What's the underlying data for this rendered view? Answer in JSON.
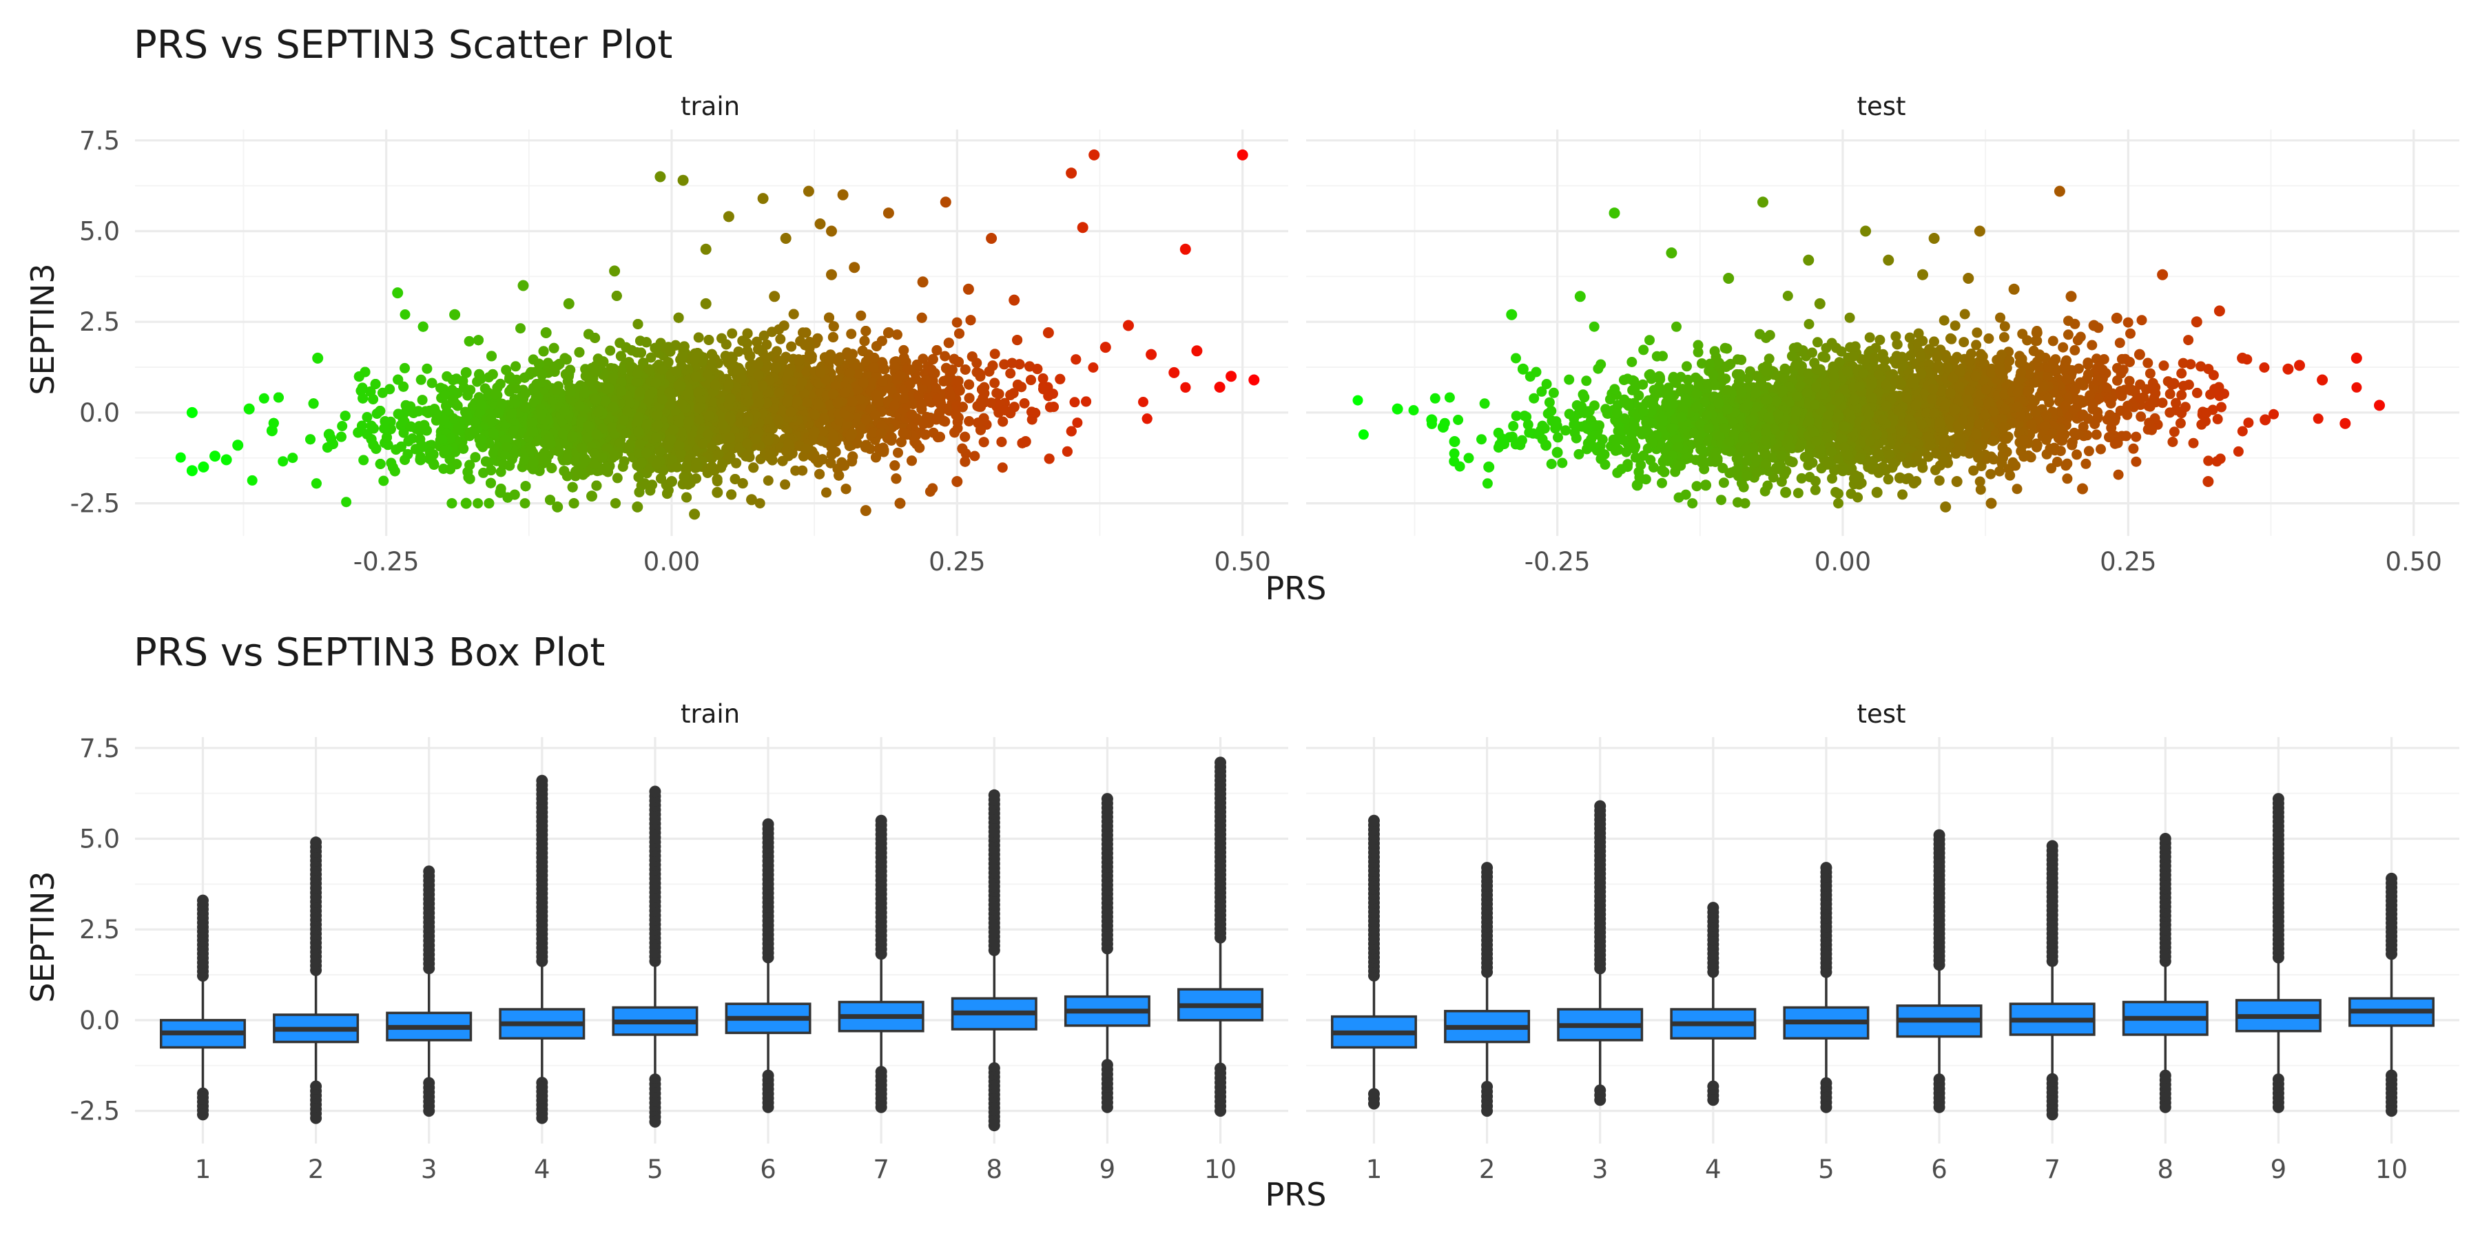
{
  "chart_data": [
    {
      "type": "scatter",
      "title": "PRS vs SEPTIN3 Scatter Plot",
      "xlabel": "PRS",
      "ylabel": "SEPTIN3",
      "facets": [
        "train",
        "test"
      ],
      "xlim": [
        -0.47,
        0.54
      ],
      "ylim": [
        -3.4,
        7.8
      ],
      "x_ticks": [
        -0.25,
        0.0,
        0.25,
        0.5
      ],
      "x_tick_labels": [
        "-0.25",
        "0.00",
        "0.25",
        "0.50"
      ],
      "y_ticks": [
        -2.5,
        0.0,
        2.5,
        5.0,
        7.5
      ],
      "y_tick_labels": [
        "-2.5",
        "0.0",
        "2.5",
        "5.0",
        "7.5"
      ],
      "grid": true,
      "color_gradient": [
        "#00ff00",
        "#ff0000"
      ],
      "series": [
        {
          "name": "train",
          "x": [
            -0.42,
            -0.41,
            -0.42,
            -0.4,
            -0.39,
            -0.38,
            -0.37,
            -0.35,
            -0.31,
            -0.3,
            -0.24,
            -0.22,
            -0.19,
            -0.18,
            -0.15,
            -0.13,
            -0.1,
            -0.09,
            -0.07,
            -0.05,
            -0.03,
            -0.01,
            0.0,
            0.01,
            0.02,
            0.03,
            0.04,
            0.05,
            0.07,
            0.08,
            0.1,
            0.12,
            0.13,
            0.14,
            0.15,
            0.16,
            0.17,
            0.19,
            0.2,
            0.22,
            0.24,
            0.25,
            0.26,
            0.28,
            0.3,
            0.31,
            0.33,
            0.35,
            0.36,
            0.37,
            0.38,
            0.4,
            0.42,
            0.44,
            0.45,
            0.46,
            0.48,
            0.49,
            0.5,
            0.51,
            -0.18,
            -0.11,
            0.19,
            0.09,
            -0.06,
            0.03,
            0.14
          ],
          "y": [
            0.0,
            -1.5,
            -1.6,
            -1.2,
            -1.3,
            -0.9,
            0.1,
            -0.5,
            1.5,
            -0.6,
            3.3,
            -1.3,
            2.7,
            -2.5,
            -2.2,
            3.5,
            -2.6,
            3.0,
            -2.3,
            3.9,
            -2.6,
            6.5,
            -1.9,
            6.4,
            -2.8,
            4.5,
            -2.2,
            5.4,
            -2.4,
            5.9,
            4.8,
            6.1,
            5.2,
            5.0,
            6.0,
            4.0,
            -2.7,
            5.5,
            -2.5,
            3.6,
            5.8,
            -1.9,
            3.4,
            4.8,
            3.1,
            -0.8,
            2.2,
            6.6,
            5.1,
            7.1,
            1.8,
            2.4,
            1.6,
            1.1,
            4.5,
            1.7,
            0.7,
            1.0,
            7.1,
            0.9,
            1.1,
            2.2,
            2.2,
            3.2,
            1.4,
            3.0,
            3.8
          ]
        },
        {
          "name": "test",
          "x": [
            -0.39,
            -0.36,
            -0.35,
            -0.34,
            -0.31,
            -0.29,
            -0.28,
            -0.25,
            -0.23,
            -0.2,
            -0.18,
            -0.15,
            -0.12,
            -0.1,
            -0.07,
            -0.05,
            -0.03,
            -0.02,
            0.0,
            0.02,
            0.04,
            0.05,
            0.07,
            0.08,
            0.09,
            0.11,
            0.12,
            0.13,
            0.15,
            0.17,
            0.19,
            0.2,
            0.21,
            0.22,
            0.24,
            0.26,
            0.28,
            0.29,
            0.31,
            0.32,
            0.33,
            0.35,
            0.37,
            0.39,
            0.4,
            0.42,
            0.44,
            0.45,
            0.47,
            -0.26,
            0.03,
            0.1
          ],
          "y": [
            0.1,
            -0.2,
            -0.4,
            -0.8,
            -1.5,
            2.7,
            1.2,
            -1.1,
            3.2,
            5.5,
            -2.0,
            4.4,
            -2.0,
            3.7,
            5.8,
            -2.2,
            4.2,
            3.0,
            -1.6,
            5.0,
            4.2,
            -1.8,
            3.8,
            4.8,
            -2.6,
            3.7,
            5.0,
            -2.5,
            3.4,
            2.2,
            6.1,
            3.2,
            -2.1,
            2.4,
            2.6,
            1.6,
            3.8,
            0.8,
            2.5,
            -1.9,
            2.8,
            1.5,
            -0.2,
            1.2,
            1.3,
            0.9,
            -0.3,
            1.5,
            0.2,
            -0.9,
            -2.2,
            -1.9
          ]
        }
      ]
    },
    {
      "type": "box",
      "title": "PRS vs SEPTIN3 Box Plot",
      "xlabel": "PRS",
      "ylabel": "SEPTIN3",
      "facets": [
        "train",
        "test"
      ],
      "categories": [
        "1",
        "2",
        "3",
        "4",
        "5",
        "6",
        "7",
        "8",
        "9",
        "10"
      ],
      "ylim": [
        -3.4,
        7.8
      ],
      "y_ticks": [
        -2.5,
        0.0,
        2.5,
        5.0,
        7.5
      ],
      "y_tick_labels": [
        "-2.5",
        "0.0",
        "2.5",
        "5.0",
        "7.5"
      ],
      "box_color": "#1e90ff",
      "series": [
        {
          "name": "train",
          "q1": [
            -0.75,
            -0.6,
            -0.55,
            -0.5,
            -0.4,
            -0.35,
            -0.3,
            -0.25,
            -0.15,
            0.0
          ],
          "median": [
            -0.35,
            -0.25,
            -0.2,
            -0.1,
            -0.05,
            0.05,
            0.1,
            0.2,
            0.25,
            0.4
          ],
          "q3": [
            0.0,
            0.15,
            0.2,
            0.3,
            0.35,
            0.45,
            0.5,
            0.6,
            0.65,
            0.85
          ],
          "whisker_low": [
            -1.9,
            -1.7,
            -1.6,
            -1.6,
            -1.5,
            -1.4,
            -1.3,
            -1.2,
            -1.1,
            -1.2
          ],
          "whisker_high": [
            1.1,
            1.25,
            1.3,
            1.5,
            1.5,
            1.6,
            1.7,
            1.8,
            1.85,
            2.15
          ],
          "outlier_max": [
            3.3,
            4.9,
            4.1,
            6.6,
            6.3,
            5.4,
            5.5,
            6.2,
            6.1,
            7.1
          ],
          "outlier_min": [
            -2.6,
            -2.7,
            -2.5,
            -2.7,
            -2.8,
            -2.4,
            -2.4,
            -2.9,
            -2.4,
            -2.5
          ]
        },
        {
          "name": "test",
          "q1": [
            -0.75,
            -0.6,
            -0.55,
            -0.5,
            -0.5,
            -0.45,
            -0.4,
            -0.4,
            -0.3,
            -0.15
          ],
          "median": [
            -0.35,
            -0.2,
            -0.15,
            -0.1,
            -0.05,
            0.0,
            0.0,
            0.05,
            0.1,
            0.25
          ],
          "q3": [
            0.1,
            0.25,
            0.3,
            0.3,
            0.35,
            0.4,
            0.45,
            0.5,
            0.55,
            0.6
          ],
          "whisker_low": [
            -1.9,
            -1.7,
            -1.8,
            -1.7,
            -1.6,
            -1.5,
            -1.5,
            -1.4,
            -1.5,
            -1.4
          ],
          "whisker_high": [
            1.1,
            1.2,
            1.3,
            1.2,
            1.2,
            1.4,
            1.5,
            1.5,
            1.6,
            1.7
          ],
          "outlier_max": [
            5.5,
            4.2,
            5.9,
            3.1,
            4.2,
            5.1,
            4.8,
            5.0,
            6.1,
            3.9
          ],
          "outlier_min": [
            -2.3,
            -2.5,
            -2.2,
            -2.2,
            -2.4,
            -2.4,
            -2.6,
            -2.4,
            -2.4,
            -2.5
          ]
        }
      ]
    }
  ]
}
